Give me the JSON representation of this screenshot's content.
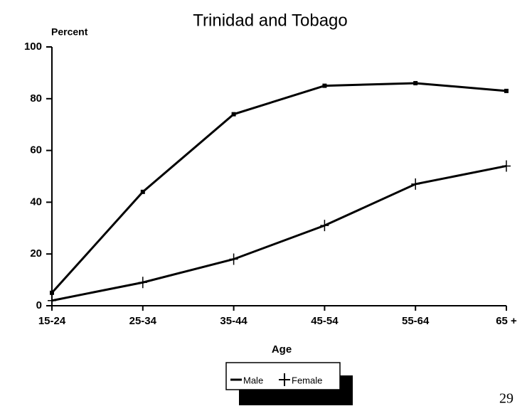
{
  "chart_data": {
    "type": "line",
    "title": "Trinidad and Tobago",
    "y_label": "Percent",
    "x_label": "Age",
    "categories": [
      "15-24",
      "25-34",
      "35-44",
      "45-54",
      "55-64",
      "65 +"
    ],
    "series": [
      {
        "name": "Male",
        "color": "#000000",
        "marker": "square",
        "values": [
          5,
          44,
          74,
          85,
          86,
          83
        ]
      },
      {
        "name": "Female",
        "color": "#000000",
        "marker": "plus",
        "values": [
          2,
          9,
          18,
          31,
          47,
          54
        ]
      }
    ],
    "ylim": [
      0,
      100
    ],
    "yticks": [
      0,
      20,
      40,
      60,
      80,
      100
    ],
    "grid": false,
    "annotations": [
      "29"
    ]
  }
}
